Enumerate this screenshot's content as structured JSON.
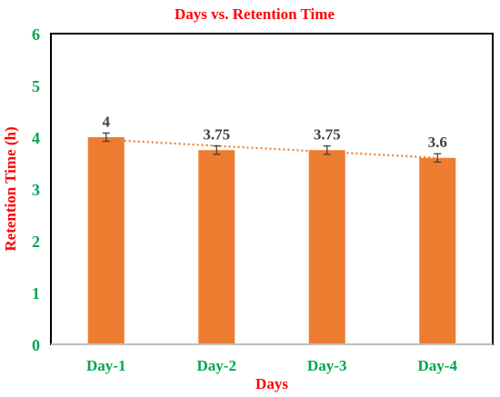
{
  "chart_data": {
    "type": "bar",
    "title": "Days vs. Retention Time",
    "xlabel": "Days",
    "ylabel": "Retention Time (h)",
    "categories": [
      "Day-1",
      "Day-2",
      "Day-3",
      "Day-4"
    ],
    "values": [
      4,
      3.75,
      3.75,
      3.6
    ],
    "data_labels": [
      "4",
      "3.75",
      "3.75",
      "3.6"
    ],
    "error": [
      0.08,
      0.08,
      0.08,
      0.08
    ],
    "ylim": [
      0,
      6
    ],
    "yticks": [
      "0",
      "1",
      "2",
      "3",
      "4",
      "5",
      "6"
    ],
    "trendline": {
      "type": "linear",
      "style": "dotted",
      "start": 3.95,
      "end": 3.6
    },
    "legend": "none",
    "grid": false,
    "colors": {
      "bar": "#ED7D31",
      "trendline": "#ED7D31",
      "title": "#FF0000",
      "axis_label": "#FF0000",
      "tick_label": "#00A651",
      "data_label": "#404040",
      "error_bar": "#404040",
      "frame": "#000000"
    }
  }
}
